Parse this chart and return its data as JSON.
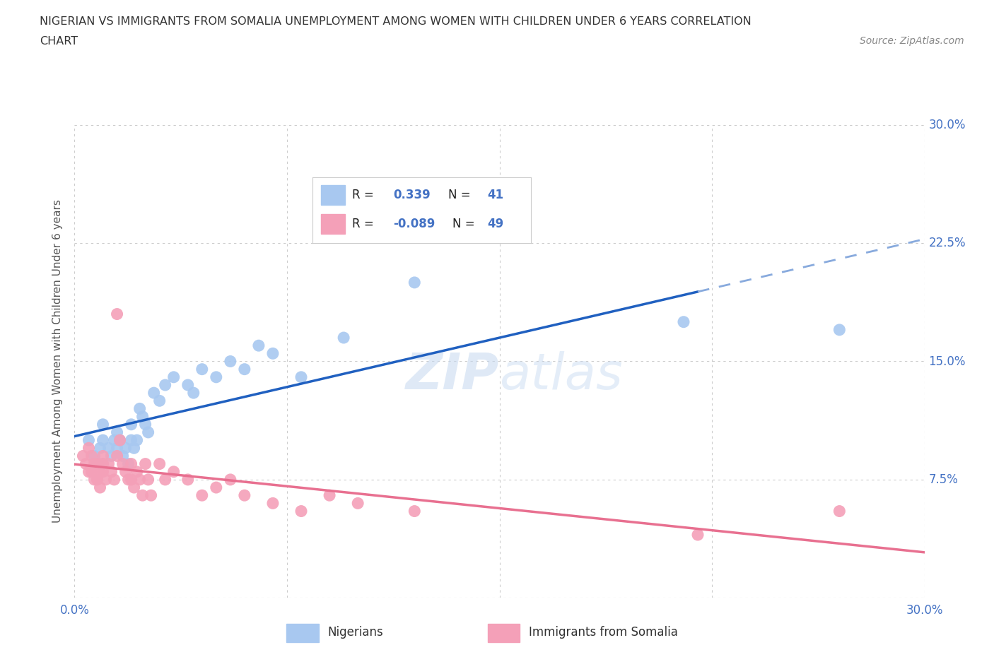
{
  "title_line1": "NIGERIAN VS IMMIGRANTS FROM SOMALIA UNEMPLOYMENT AMONG WOMEN WITH CHILDREN UNDER 6 YEARS CORRELATION",
  "title_line2": "CHART",
  "source": "Source: ZipAtlas.com",
  "ylabel": "Unemployment Among Women with Children Under 6 years",
  "xlim": [
    0.0,
    0.3
  ],
  "ylim": [
    0.0,
    0.3
  ],
  "watermark": "ZIPatlas",
  "R_nigerian": 0.339,
  "N_nigerian": 41,
  "R_somalia": -0.089,
  "N_somalia": 49,
  "nigerian_color": "#A8C8F0",
  "somalia_color": "#F4A0B8",
  "nigerian_line_color": "#2060C0",
  "nigeria_line_dashed_color": "#88AADD",
  "somalia_line_color": "#E87090",
  "nigerian_x": [
    0.005,
    0.007,
    0.008,
    0.009,
    0.01,
    0.01,
    0.01,
    0.012,
    0.013,
    0.014,
    0.015,
    0.015,
    0.016,
    0.017,
    0.018,
    0.019,
    0.02,
    0.02,
    0.021,
    0.022,
    0.023,
    0.024,
    0.025,
    0.026,
    0.028,
    0.03,
    0.032,
    0.035,
    0.04,
    0.042,
    0.045,
    0.05,
    0.055,
    0.06,
    0.065,
    0.07,
    0.08,
    0.095,
    0.12,
    0.215,
    0.27
  ],
  "nigerian_y": [
    0.1,
    0.09,
    0.085,
    0.095,
    0.085,
    0.1,
    0.11,
    0.095,
    0.09,
    0.1,
    0.105,
    0.095,
    0.1,
    0.09,
    0.095,
    0.085,
    0.1,
    0.11,
    0.095,
    0.1,
    0.12,
    0.115,
    0.11,
    0.105,
    0.13,
    0.125,
    0.135,
    0.14,
    0.135,
    0.13,
    0.145,
    0.14,
    0.15,
    0.145,
    0.16,
    0.155,
    0.14,
    0.165,
    0.2,
    0.175,
    0.17
  ],
  "somalia_x": [
    0.003,
    0.004,
    0.005,
    0.005,
    0.006,
    0.006,
    0.007,
    0.007,
    0.008,
    0.008,
    0.009,
    0.009,
    0.01,
    0.01,
    0.01,
    0.011,
    0.012,
    0.013,
    0.014,
    0.015,
    0.015,
    0.016,
    0.017,
    0.018,
    0.019,
    0.02,
    0.02,
    0.021,
    0.022,
    0.023,
    0.024,
    0.025,
    0.026,
    0.027,
    0.03,
    0.032,
    0.035,
    0.04,
    0.045,
    0.05,
    0.055,
    0.06,
    0.07,
    0.08,
    0.09,
    0.1,
    0.12,
    0.22,
    0.27
  ],
  "somalia_y": [
    0.09,
    0.085,
    0.095,
    0.08,
    0.09,
    0.08,
    0.085,
    0.075,
    0.085,
    0.075,
    0.08,
    0.07,
    0.09,
    0.085,
    0.08,
    0.075,
    0.085,
    0.08,
    0.075,
    0.09,
    0.18,
    0.1,
    0.085,
    0.08,
    0.075,
    0.085,
    0.075,
    0.07,
    0.08,
    0.075,
    0.065,
    0.085,
    0.075,
    0.065,
    0.085,
    0.075,
    0.08,
    0.075,
    0.065,
    0.07,
    0.075,
    0.065,
    0.06,
    0.055,
    0.065,
    0.06,
    0.055,
    0.04,
    0.055
  ],
  "background_color": "#FFFFFF",
  "grid_color": "#CCCCCC",
  "title_color": "#333333",
  "axis_label_color": "#555555",
  "tick_color_blue": "#4472C4"
}
